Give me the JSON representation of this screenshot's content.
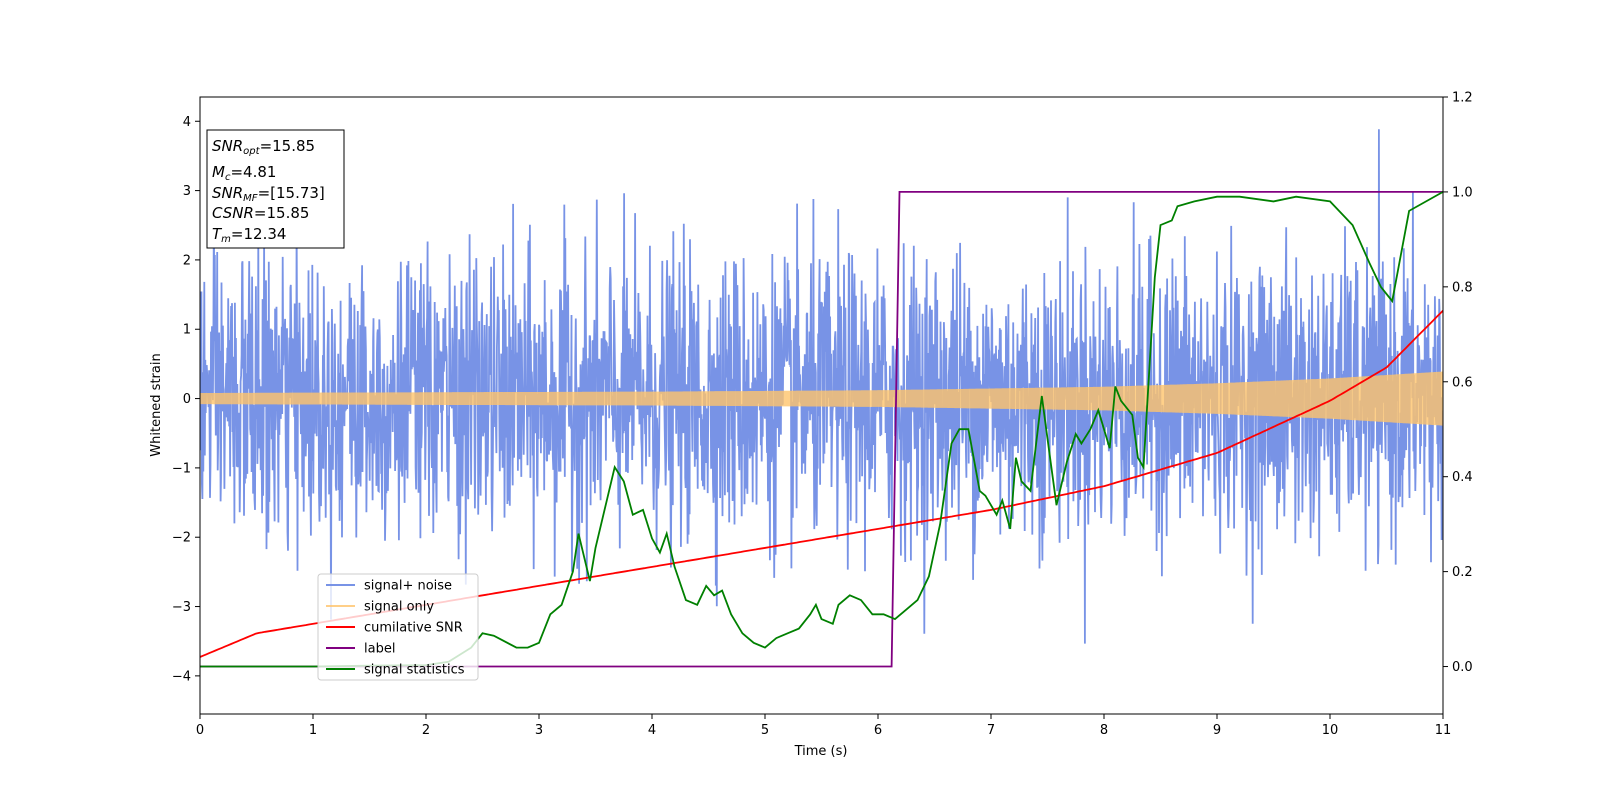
{
  "chart_data": {
    "type": "line",
    "xlabel": "Time (s)",
    "ylabel": "Whitened strain",
    "xlim": [
      0,
      11
    ],
    "ylim_left": [
      -4.55,
      4.35
    ],
    "ylim_right": [
      -0.1,
      1.2
    ],
    "x_ticks": [
      0,
      1,
      2,
      3,
      4,
      5,
      6,
      7,
      8,
      9,
      10,
      11
    ],
    "y_left_ticks": [
      -4,
      -3,
      -2,
      -1,
      0,
      1,
      2,
      3,
      4
    ],
    "y_right_ticks": [
      "0.0",
      "0.2",
      "0.4",
      "0.6",
      "0.8",
      "1.0",
      "1.2"
    ],
    "annotation": {
      "snr_opt": {
        "base": "SNR",
        "sub": "opt",
        "value": "=15.85"
      },
      "mc": {
        "base": "M",
        "sub": "c",
        "value": "=4.81"
      },
      "snr_mf": {
        "base": "SNR",
        "sub": "MF",
        "value": "=[15.73]"
      },
      "csnr": {
        "base": "CSNR",
        "value": "=15.85"
      },
      "tm": {
        "base": "T",
        "sub": "m",
        "value": "=12.34"
      }
    },
    "legend": {
      "placement": "lower-left",
      "entries": [
        "signal+ noise",
        "signal only",
        "cumilative SNR",
        "label",
        "signal statistics"
      ]
    },
    "colors": {
      "noise": "#7893e6",
      "signal": "#ffc46b",
      "cum_snr": "#ff0000",
      "label": "#800080",
      "stats": "#008000"
    },
    "series": [
      {
        "name": "signal+ noise",
        "axis": "left",
        "description_values": {
          "noise_sigma": 1.0,
          "envelope_min": -4.15,
          "envelope_max": 3.95
        }
      },
      {
        "name": "signal only",
        "axis": "left",
        "amplitude": {
          "x": [
            0,
            2,
            4,
            6,
            8,
            9,
            10,
            11
          ],
          "y": [
            0.08,
            0.09,
            0.1,
            0.12,
            0.17,
            0.22,
            0.29,
            0.39
          ]
        }
      },
      {
        "name": "cumilative SNR",
        "axis": "right",
        "x": [
          0,
          0.5,
          1,
          2,
          3,
          4,
          5,
          6,
          7,
          8,
          9,
          10,
          10.5,
          11
        ],
        "y": [
          0.02,
          0.07,
          0.09,
          0.13,
          0.17,
          0.21,
          0.25,
          0.29,
          0.33,
          0.38,
          0.45,
          0.56,
          0.63,
          0.75
        ]
      },
      {
        "name": "label",
        "axis": "right",
        "x": [
          0,
          6.12,
          6.19,
          11
        ],
        "y": [
          0,
          0,
          1,
          1
        ]
      },
      {
        "name": "signal statistics",
        "axis": "right",
        "x": [
          0,
          0.5,
          1,
          1.5,
          2,
          2.2,
          2.4,
          2.5,
          2.6,
          2.8,
          2.9,
          3.0,
          3.1,
          3.2,
          3.3,
          3.35,
          3.45,
          3.5,
          3.6,
          3.67,
          3.75,
          3.83,
          3.92,
          4.0,
          4.07,
          4.13,
          4.2,
          4.3,
          4.4,
          4.48,
          4.55,
          4.62,
          4.7,
          4.8,
          4.9,
          5.0,
          5.1,
          5.2,
          5.3,
          5.4,
          5.45,
          5.5,
          5.6,
          5.65,
          5.75,
          5.85,
          5.95,
          6.05,
          6.15,
          6.25,
          6.35,
          6.45,
          6.55,
          6.65,
          6.72,
          6.8,
          6.9,
          6.95,
          7.05,
          7.1,
          7.17,
          7.22,
          7.27,
          7.35,
          7.45,
          7.5,
          7.58,
          7.67,
          7.75,
          7.8,
          7.88,
          7.95,
          8.05,
          8.1,
          8.15,
          8.25,
          8.3,
          8.35,
          8.45,
          8.5,
          8.6,
          8.65,
          8.8,
          9.0,
          9.2,
          9.5,
          9.7,
          10.0,
          10.2,
          10.35,
          10.45,
          10.55,
          10.7,
          11.0
        ],
        "y": [
          0.0,
          0.0,
          0.0,
          0.002,
          0.003,
          0.01,
          0.04,
          0.07,
          0.065,
          0.04,
          0.04,
          0.05,
          0.11,
          0.13,
          0.2,
          0.28,
          0.18,
          0.25,
          0.35,
          0.42,
          0.39,
          0.32,
          0.33,
          0.27,
          0.24,
          0.28,
          0.21,
          0.14,
          0.13,
          0.17,
          0.15,
          0.16,
          0.11,
          0.07,
          0.05,
          0.04,
          0.06,
          0.07,
          0.08,
          0.11,
          0.13,
          0.1,
          0.09,
          0.13,
          0.15,
          0.14,
          0.11,
          0.11,
          0.1,
          0.12,
          0.14,
          0.19,
          0.3,
          0.47,
          0.5,
          0.5,
          0.37,
          0.36,
          0.32,
          0.35,
          0.29,
          0.44,
          0.39,
          0.37,
          0.57,
          0.48,
          0.34,
          0.43,
          0.49,
          0.47,
          0.5,
          0.54,
          0.46,
          0.59,
          0.56,
          0.53,
          0.44,
          0.42,
          0.82,
          0.93,
          0.94,
          0.97,
          0.98,
          0.99,
          0.99,
          0.98,
          0.99,
          0.98,
          0.93,
          0.85,
          0.8,
          0.77,
          0.96,
          1.0
        ]
      }
    ]
  }
}
